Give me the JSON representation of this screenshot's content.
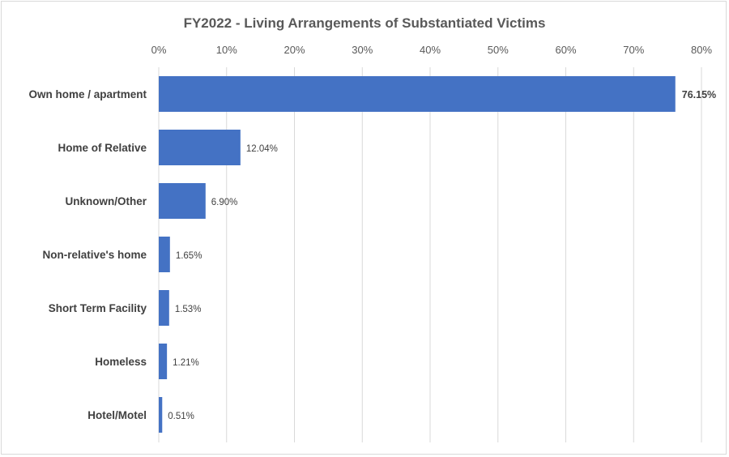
{
  "chart_data": {
    "type": "bar",
    "orientation": "horizontal",
    "title": "FY2022 - Living Arrangements of Substantiated Victims",
    "xlabel": "",
    "ylabel": "",
    "xlim": [
      0,
      80
    ],
    "x_ticks": [
      "0%",
      "10%",
      "20%",
      "30%",
      "40%",
      "50%",
      "60%",
      "70%",
      "80%"
    ],
    "x_tick_values": [
      0,
      10,
      20,
      30,
      40,
      50,
      60,
      70,
      80
    ],
    "grid": true,
    "x_axis_position": "top",
    "categories": [
      "Own home / apartment",
      "Home of Relative",
      "Unknown/Other",
      "Non-relative's home",
      "Short Term Facility",
      "Homeless",
      "Hotel/Motel"
    ],
    "values": [
      76.15,
      12.04,
      6.9,
      1.65,
      1.53,
      1.21,
      0.51
    ],
    "data_labels": [
      "76.15%",
      "12.04%",
      "6.90%",
      "1.65%",
      "1.53%",
      "1.21%",
      "0.51%"
    ],
    "bar_color": "#4472C4"
  }
}
